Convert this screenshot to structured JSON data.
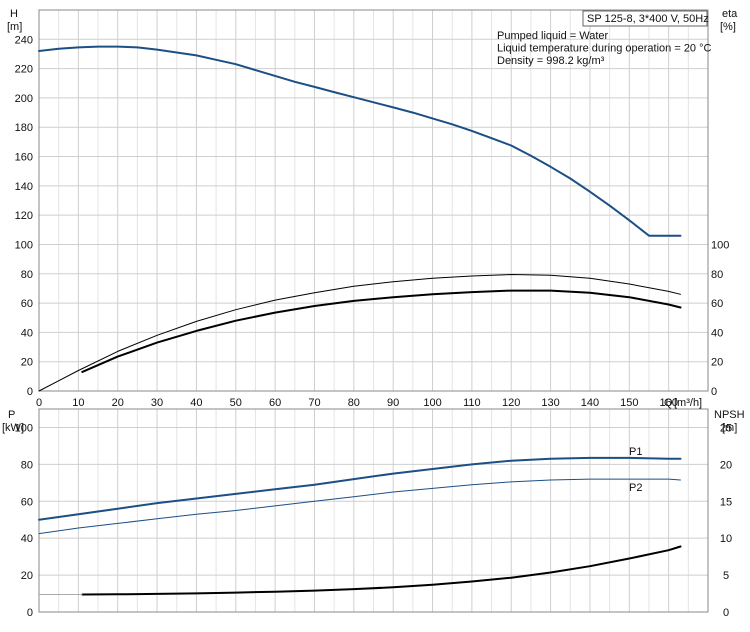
{
  "chart_data": [
    {
      "type": "line",
      "id": "head-efficiency",
      "title": "SP 125-8, 3*400 V, 50Hz",
      "annotations": [
        "Pumped liquid = Water",
        "Liquid temperature during operation = 20 °C",
        "Density = 998.2 kg/m³"
      ],
      "xlabel": "Q [m³/h]",
      "xlabel_name": "Q",
      "xlabel_unit": "[m³/h]",
      "xlim": [
        0,
        170
      ],
      "x_ticks": [
        0,
        10,
        20,
        30,
        40,
        50,
        60,
        70,
        80,
        90,
        100,
        110,
        120,
        130,
        140,
        150,
        160
      ],
      "ylabel_left": [
        "H",
        "[m]"
      ],
      "ylim_left": [
        0,
        260
      ],
      "y_ticks_left": [
        0,
        20,
        40,
        60,
        80,
        100,
        120,
        140,
        160,
        180,
        200,
        220,
        240
      ],
      "ylabel_right": [
        "eta",
        "[%]"
      ],
      "y_ticks_right": [
        0,
        20,
        40,
        60,
        80,
        100
      ],
      "grid": true,
      "series": [
        {
          "axis": "left",
          "color": "#1c4f86",
          "width": 2,
          "x": [
            0,
            5,
            10,
            15,
            20,
            25,
            30,
            35,
            40,
            45,
            50,
            55,
            60,
            65,
            70,
            75,
            80,
            85,
            90,
            95,
            100,
            105,
            110,
            115,
            120,
            125,
            130,
            135,
            140,
            145,
            150,
            155,
            160,
            163
          ],
          "y": [
            232,
            233.5,
            234.5,
            235,
            235,
            234.5,
            233,
            231,
            229,
            226,
            223,
            219,
            215,
            211,
            207.5,
            204,
            200.5,
            197,
            193.5,
            190,
            186,
            182,
            177.5,
            172.5,
            167.5,
            160.5,
            153,
            145,
            136,
            126.5,
            116.5,
            106,
            106,
            106
          ]
        },
        {
          "axis": "left",
          "color": "#000000",
          "width": 1,
          "x": [
            0,
            10,
            20,
            30,
            40,
            50,
            60,
            70,
            80,
            90,
            100,
            110,
            120,
            130,
            140,
            150,
            160,
            163
          ],
          "y": [
            0,
            14,
            27,
            38,
            47.5,
            55.5,
            62,
            67,
            71.5,
            74.5,
            77,
            78.5,
            79.5,
            79,
            77,
            73,
            68,
            66
          ]
        },
        {
          "axis": "left",
          "color": "#000000",
          "width": 2,
          "x": [
            11,
            20,
            30,
            40,
            50,
            60,
            70,
            80,
            90,
            100,
            110,
            120,
            130,
            140,
            150,
            160,
            163
          ],
          "y": [
            13,
            23.5,
            33,
            41,
            48,
            53.5,
            58,
            61.5,
            64,
            66,
            67.5,
            68.5,
            68.5,
            67,
            64,
            59,
            57
          ]
        }
      ]
    },
    {
      "type": "line",
      "id": "power-npsh",
      "xlim": [
        0,
        170
      ],
      "ylabel_left": [
        "P",
        "[kW]"
      ],
      "ylim_left": [
        0,
        110
      ],
      "y_ticks_left": [
        0,
        20,
        40,
        60,
        80,
        100
      ],
      "ylabel_right": [
        "NPSH",
        "[m]"
      ],
      "y_ticks_right": [
        0,
        5,
        10,
        15,
        20,
        25
      ],
      "grid": true,
      "series": [
        {
          "name": "P1",
          "axis": "left",
          "color": "#1c4f86",
          "width": 2,
          "x": [
            0,
            10,
            20,
            30,
            40,
            50,
            60,
            70,
            80,
            90,
            100,
            110,
            120,
            130,
            140,
            150,
            160,
            163
          ],
          "y": [
            50,
            53,
            56,
            59,
            61.5,
            64,
            66.5,
            69,
            72,
            75,
            77.5,
            80,
            82,
            83,
            83.5,
            83.5,
            83,
            83
          ]
        },
        {
          "name": "P2",
          "axis": "left",
          "color": "#1c4f86",
          "width": 1,
          "x": [
            0,
            10,
            20,
            30,
            40,
            50,
            60,
            70,
            80,
            90,
            100,
            110,
            120,
            130,
            140,
            150,
            160,
            163
          ],
          "y": [
            42.5,
            45.5,
            48,
            50.5,
            53,
            55,
            57.5,
            60,
            62.5,
            65,
            67,
            69,
            70.5,
            71.5,
            72,
            72,
            72,
            71.5
          ]
        },
        {
          "axis": "left",
          "color": "#000000",
          "width": 2,
          "x": [
            11,
            20,
            30,
            40,
            50,
            60,
            70,
            80,
            90,
            100,
            110,
            120,
            130,
            140,
            150,
            160,
            163
          ],
          "y": [
            9.5,
            9.6,
            9.8,
            10.1,
            10.5,
            11,
            11.6,
            12.4,
            13.4,
            14.8,
            16.5,
            18.6,
            21.4,
            24.8,
            29,
            33.5,
            35.5
          ]
        }
      ]
    }
  ]
}
